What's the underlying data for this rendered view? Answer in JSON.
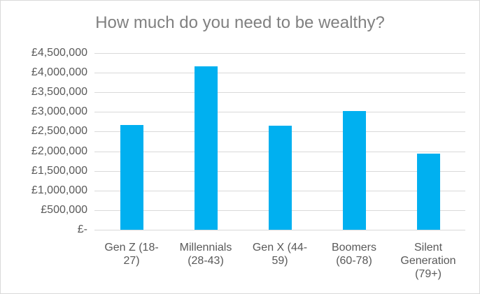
{
  "chart_data": {
    "type": "bar",
    "title": "How much do you need to be wealthy?",
    "categories": [
      "Gen Z (18-27)",
      "Millennials (28-43)",
      "Gen X (44-59)",
      "Boomers (60-78)",
      "Silent Generation (79+)"
    ],
    "values": [
      2670000,
      4160000,
      2650000,
      3020000,
      1940000
    ],
    "color": "#00b0f0",
    "ylim": [
      0,
      4500000
    ],
    "yticks": [
      {
        "value": 0,
        "label": "£-"
      },
      {
        "value": 500000,
        "label": "£500,000"
      },
      {
        "value": 1000000,
        "label": "£1,000,000"
      },
      {
        "value": 1500000,
        "label": "£1,500,000"
      },
      {
        "value": 2000000,
        "label": "£2,000,000"
      },
      {
        "value": 2500000,
        "label": "£2,500,000"
      },
      {
        "value": 3000000,
        "label": "£3,000,000"
      },
      {
        "value": 3500000,
        "label": "£3,500,000"
      },
      {
        "value": 4000000,
        "label": "£4,000,000"
      },
      {
        "value": 4500000,
        "label": "£4,500,000"
      }
    ],
    "grid": true
  }
}
